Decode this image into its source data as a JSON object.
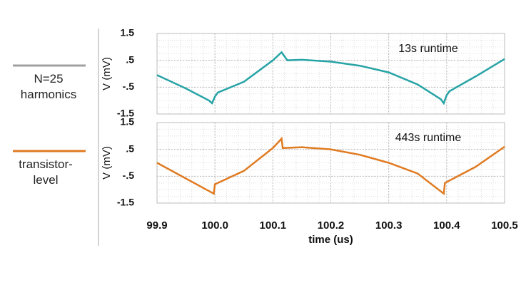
{
  "chart_data": [
    {
      "type": "line",
      "ylabel": "V (mV)",
      "annotation": "13s runtime",
      "xlim": [
        99.9,
        100.5
      ],
      "ylim": [
        -1.5,
        1.5
      ],
      "yticks": [
        1.5,
        {
          "value": 0.5,
          "label": ".5"
        },
        {
          "value": -0.5,
          "label": "-.5"
        },
        -1.5
      ],
      "grid": true,
      "series": [
        {
          "name": "N=25 harmonics",
          "color": "#27a3a6",
          "legend_color": "#a0a0a0",
          "x": [
            99.9,
            99.95,
            99.99,
            99.995,
            100.0,
            100.005,
            100.05,
            100.1,
            100.115,
            100.12,
            100.125,
            100.15,
            100.2,
            100.25,
            100.3,
            100.35,
            100.39,
            100.395,
            100.4,
            100.405,
            100.45,
            100.5
          ],
          "values": [
            -0.05,
            -0.55,
            -1.0,
            -1.1,
            -0.85,
            -0.7,
            -0.3,
            0.5,
            0.8,
            0.65,
            0.5,
            0.52,
            0.45,
            0.3,
            0.05,
            -0.4,
            -0.95,
            -1.1,
            -0.8,
            -0.65,
            -0.1,
            0.55
          ]
        }
      ]
    },
    {
      "type": "line",
      "ylabel": "V (mV)",
      "annotation": "443s runtime",
      "xlabel": "time (us)",
      "xlim": [
        99.9,
        100.5
      ],
      "ylim": [
        -1.5,
        1.5
      ],
      "xticks": [
        99.9,
        {
          "value": 100.0,
          "label": "100.0"
        },
        100.1,
        100.2,
        100.3,
        100.4,
        100.5
      ],
      "yticks": [
        1.5,
        {
          "value": 0.5,
          "label": ".5"
        },
        {
          "value": -0.5,
          "label": "-.5"
        },
        -1.5
      ],
      "grid": true,
      "series": [
        {
          "name": "transistor-level",
          "color": "#e07b22",
          "legend_color": "#e07b22",
          "x": [
            99.9,
            99.998,
            100.0,
            100.05,
            100.1,
            100.115,
            100.117,
            100.15,
            100.2,
            100.25,
            100.3,
            100.35,
            100.395,
            100.397,
            100.45,
            100.5
          ],
          "values": [
            0,
            -1.15,
            -0.8,
            -0.3,
            0.55,
            0.9,
            0.55,
            0.58,
            0.5,
            0.3,
            0.0,
            -0.4,
            -1.15,
            -0.75,
            -0.15,
            0.6
          ]
        }
      ]
    }
  ]
}
